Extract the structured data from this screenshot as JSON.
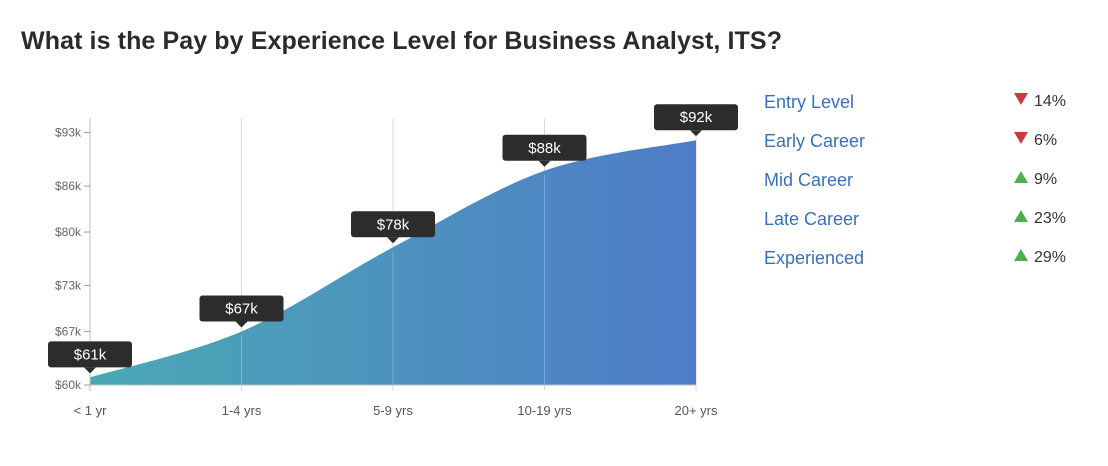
{
  "title": "What is the Pay by Experience Level for Business Analyst, ITS?",
  "colors": {
    "gradient_start": "#4aa9b4",
    "gradient_end": "#4f7cc8",
    "label_bg": "#2c2c2c",
    "up": "#4caf50",
    "down": "#c93b3b",
    "legend_text": "#3a70b8"
  },
  "chart_data": {
    "type": "area",
    "categories": [
      "< 1 yr",
      "1-4 yrs",
      "5-9 yrs",
      "10-19 yrs",
      "20+ yrs"
    ],
    "values": [
      61,
      67,
      78,
      88,
      92
    ],
    "data_labels": [
      "$61k",
      "$67k",
      "$78k",
      "$88k",
      "$92k"
    ],
    "y_ticks": [
      {
        "value": 60,
        "label": "$60k"
      },
      {
        "value": 67,
        "label": "$67k"
      },
      {
        "value": 73,
        "label": "$73k"
      },
      {
        "value": 80,
        "label": "$80k"
      },
      {
        "value": 86,
        "label": "$86k"
      },
      {
        "value": 93,
        "label": "$93k"
      }
    ],
    "ylim": [
      60,
      93
    ],
    "grid": "vertical",
    "title": "",
    "xlabel": "",
    "ylabel": ""
  },
  "legend": [
    {
      "label": "Entry Level",
      "direction": "down",
      "change": "14%"
    },
    {
      "label": "Early Career",
      "direction": "down",
      "change": "6%"
    },
    {
      "label": "Mid Career",
      "direction": "up",
      "change": "9%"
    },
    {
      "label": "Late Career",
      "direction": "up",
      "change": "23%"
    },
    {
      "label": "Experienced",
      "direction": "up",
      "change": "29%"
    }
  ]
}
